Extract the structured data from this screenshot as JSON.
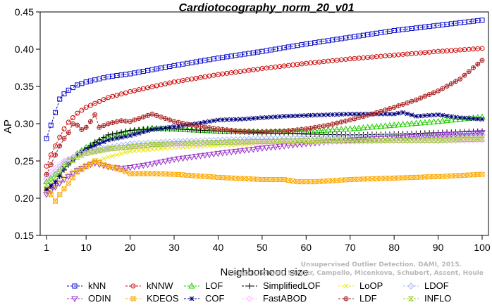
{
  "chart_data": {
    "type": "line",
    "title": "Cardiotocography_norm_20_v01",
    "xlabel": "Neighborhood size",
    "ylabel": "AP",
    "xlim": [
      1,
      100
    ],
    "ylim": [
      0.15,
      0.45
    ],
    "xticks": [
      1,
      10,
      20,
      30,
      40,
      50,
      60,
      70,
      80,
      90,
      100
    ],
    "yticks": [
      0.15,
      0.2,
      0.25,
      0.3,
      0.35,
      0.4,
      0.45
    ],
    "grid": false,
    "legend_position": "bottom",
    "watermark": [
      "Unsupervised Outlier Detection. DAMI, 2015.",
      "Campos, Zimek, Sander, Campello, Micenkova, Schubert, Assent, Houle"
    ],
    "series": [
      {
        "name": "kNN",
        "color": "#0000cc",
        "marker": "square",
        "points": [
          [
            1,
            0.28
          ],
          [
            2,
            0.298
          ],
          [
            3,
            0.315
          ],
          [
            4,
            0.333
          ],
          [
            5,
            0.34
          ],
          [
            6,
            0.345
          ],
          [
            8,
            0.352
          ],
          [
            10,
            0.356
          ],
          [
            15,
            0.363
          ],
          [
            20,
            0.367
          ],
          [
            30,
            0.378
          ],
          [
            40,
            0.388
          ],
          [
            50,
            0.397
          ],
          [
            60,
            0.407
          ],
          [
            70,
            0.416
          ],
          [
            80,
            0.425
          ],
          [
            90,
            0.432
          ],
          [
            100,
            0.439
          ]
        ]
      },
      {
        "name": "kNNW",
        "color": "#cc0000",
        "marker": "circle",
        "points": [
          [
            1,
            0.243
          ],
          [
            2,
            0.258
          ],
          [
            3,
            0.27
          ],
          [
            4,
            0.282
          ],
          [
            5,
            0.293
          ],
          [
            6,
            0.302
          ],
          [
            8,
            0.314
          ],
          [
            10,
            0.322
          ],
          [
            15,
            0.335
          ],
          [
            20,
            0.343
          ],
          [
            30,
            0.356
          ],
          [
            40,
            0.366
          ],
          [
            50,
            0.374
          ],
          [
            60,
            0.381
          ],
          [
            70,
            0.387
          ],
          [
            80,
            0.392
          ],
          [
            90,
            0.397
          ],
          [
            100,
            0.401
          ]
        ]
      },
      {
        "name": "LOF",
        "color": "#22cc00",
        "marker": "triangle-up",
        "points": [
          [
            1,
            0.222
          ],
          [
            3,
            0.232
          ],
          [
            5,
            0.245
          ],
          [
            8,
            0.26
          ],
          [
            10,
            0.268
          ],
          [
            12,
            0.275
          ],
          [
            15,
            0.282
          ],
          [
            20,
            0.29
          ],
          [
            25,
            0.294
          ],
          [
            30,
            0.293
          ],
          [
            40,
            0.29
          ],
          [
            50,
            0.289
          ],
          [
            60,
            0.29
          ],
          [
            70,
            0.293
          ],
          [
            80,
            0.298
          ],
          [
            90,
            0.303
          ],
          [
            100,
            0.309
          ]
        ]
      },
      {
        "name": "SimplifiedLOF",
        "color": "#000000",
        "marker": "plus",
        "points": [
          [
            1,
            0.21
          ],
          [
            3,
            0.22
          ],
          [
            5,
            0.238
          ],
          [
            8,
            0.258
          ],
          [
            10,
            0.265
          ],
          [
            12,
            0.275
          ],
          [
            15,
            0.285
          ],
          [
            20,
            0.291
          ],
          [
            25,
            0.293
          ],
          [
            30,
            0.293
          ],
          [
            40,
            0.29
          ],
          [
            50,
            0.288
          ],
          [
            60,
            0.286
          ],
          [
            70,
            0.285
          ],
          [
            80,
            0.286
          ],
          [
            90,
            0.288
          ],
          [
            100,
            0.29
          ]
        ]
      },
      {
        "name": "LoOP",
        "color": "#e8e800",
        "marker": "x",
        "points": [
          [
            1,
            0.208
          ],
          [
            3,
            0.215
          ],
          [
            5,
            0.228
          ],
          [
            8,
            0.24
          ],
          [
            10,
            0.245
          ],
          [
            15,
            0.255
          ],
          [
            20,
            0.263
          ],
          [
            30,
            0.268
          ],
          [
            40,
            0.271
          ],
          [
            50,
            0.273
          ],
          [
            60,
            0.275
          ],
          [
            70,
            0.277
          ],
          [
            80,
            0.279
          ],
          [
            90,
            0.282
          ],
          [
            100,
            0.283
          ]
        ]
      },
      {
        "name": "LDOF",
        "color": "#aab8ff",
        "marker": "diamond",
        "points": [
          [
            1,
            0.226
          ],
          [
            3,
            0.236
          ],
          [
            5,
            0.248
          ],
          [
            8,
            0.258
          ],
          [
            10,
            0.262
          ],
          [
            15,
            0.268
          ],
          [
            20,
            0.273
          ],
          [
            30,
            0.276
          ],
          [
            40,
            0.278
          ],
          [
            50,
            0.28
          ],
          [
            60,
            0.281
          ],
          [
            70,
            0.282
          ],
          [
            80,
            0.283
          ],
          [
            90,
            0.284
          ],
          [
            100,
            0.285
          ]
        ]
      },
      {
        "name": "ODIN",
        "color": "#9933cc",
        "marker": "triangle-down",
        "points": [
          [
            1,
            0.205
          ],
          [
            2,
            0.21
          ],
          [
            3,
            0.215
          ],
          [
            5,
            0.225
          ],
          [
            8,
            0.237
          ],
          [
            10,
            0.243
          ],
          [
            12,
            0.247
          ],
          [
            15,
            0.242
          ],
          [
            18,
            0.24
          ],
          [
            20,
            0.241
          ],
          [
            25,
            0.246
          ],
          [
            30,
            0.252
          ],
          [
            40,
            0.26
          ],
          [
            50,
            0.267
          ],
          [
            60,
            0.273
          ],
          [
            70,
            0.278
          ],
          [
            80,
            0.281
          ],
          [
            90,
            0.285
          ],
          [
            100,
            0.288
          ]
        ]
      },
      {
        "name": "KDEOS",
        "color": "#ffaa00",
        "marker": "square-x",
        "points": [
          [
            1,
            0.212
          ],
          [
            2,
            0.205
          ],
          [
            3,
            0.196
          ],
          [
            4,
            0.205
          ],
          [
            6,
            0.22
          ],
          [
            8,
            0.235
          ],
          [
            10,
            0.242
          ],
          [
            12,
            0.25
          ],
          [
            15,
            0.243
          ],
          [
            18,
            0.238
          ],
          [
            20,
            0.233
          ],
          [
            25,
            0.233
          ],
          [
            30,
            0.232
          ],
          [
            40,
            0.228
          ],
          [
            50,
            0.225
          ],
          [
            55,
            0.225
          ],
          [
            58,
            0.222
          ],
          [
            62,
            0.222
          ],
          [
            70,
            0.225
          ],
          [
            80,
            0.227
          ],
          [
            90,
            0.229
          ],
          [
            100,
            0.232
          ]
        ]
      },
      {
        "name": "COF",
        "color": "#000080",
        "marker": "asterisk",
        "points": [
          [
            1,
            0.212
          ],
          [
            3,
            0.222
          ],
          [
            5,
            0.24
          ],
          [
            8,
            0.258
          ],
          [
            10,
            0.266
          ],
          [
            15,
            0.278
          ],
          [
            20,
            0.284
          ],
          [
            25,
            0.292
          ],
          [
            30,
            0.296
          ],
          [
            35,
            0.3
          ],
          [
            40,
            0.305
          ],
          [
            45,
            0.306
          ],
          [
            50,
            0.308
          ],
          [
            55,
            0.31
          ],
          [
            60,
            0.311
          ],
          [
            65,
            0.312
          ],
          [
            70,
            0.313
          ],
          [
            75,
            0.313
          ],
          [
            80,
            0.313
          ],
          [
            82,
            0.315
          ],
          [
            85,
            0.31
          ],
          [
            90,
            0.312
          ],
          [
            95,
            0.308
          ],
          [
            100,
            0.306
          ]
        ]
      },
      {
        "name": "FastABOD",
        "color": "#ffbbff",
        "marker": "diamond",
        "points": [
          [
            1,
            0.23
          ],
          [
            3,
            0.24
          ],
          [
            5,
            0.25
          ],
          [
            8,
            0.258
          ],
          [
            10,
            0.262
          ],
          [
            15,
            0.266
          ],
          [
            20,
            0.269
          ],
          [
            30,
            0.272
          ],
          [
            40,
            0.274
          ],
          [
            50,
            0.275
          ],
          [
            60,
            0.276
          ],
          [
            70,
            0.276
          ],
          [
            80,
            0.277
          ],
          [
            90,
            0.277
          ],
          [
            100,
            0.278
          ]
        ]
      },
      {
        "name": "LDF",
        "color": "#aa2222",
        "marker": "circle-plus",
        "points": [
          [
            1,
            0.232
          ],
          [
            2,
            0.245
          ],
          [
            3,
            0.258
          ],
          [
            4,
            0.27
          ],
          [
            5,
            0.28
          ],
          [
            6,
            0.288
          ],
          [
            7,
            0.3
          ],
          [
            8,
            0.298
          ],
          [
            9,
            0.292
          ],
          [
            10,
            0.295
          ],
          [
            11,
            0.303
          ],
          [
            12,
            0.312
          ],
          [
            13,
            0.295
          ],
          [
            15,
            0.3
          ],
          [
            18,
            0.304
          ],
          [
            20,
            0.303
          ],
          [
            22,
            0.307
          ],
          [
            25,
            0.313
          ],
          [
            28,
            0.307
          ],
          [
            30,
            0.303
          ],
          [
            35,
            0.297
          ],
          [
            40,
            0.293
          ],
          [
            45,
            0.29
          ],
          [
            50,
            0.289
          ],
          [
            55,
            0.29
          ],
          [
            60,
            0.293
          ],
          [
            65,
            0.298
          ],
          [
            70,
            0.305
          ],
          [
            75,
            0.313
          ],
          [
            80,
            0.322
          ],
          [
            85,
            0.332
          ],
          [
            90,
            0.344
          ],
          [
            95,
            0.36
          ],
          [
            100,
            0.385
          ]
        ]
      },
      {
        "name": "INFLO",
        "color": "#99cc33",
        "marker": "hourglass",
        "points": [
          [
            1,
            0.218
          ],
          [
            3,
            0.228
          ],
          [
            5,
            0.242
          ],
          [
            8,
            0.255
          ],
          [
            10,
            0.26
          ],
          [
            15,
            0.266
          ],
          [
            20,
            0.269
          ],
          [
            25,
            0.272
          ],
          [
            30,
            0.273
          ],
          [
            40,
            0.275
          ],
          [
            50,
            0.276
          ],
          [
            60,
            0.277
          ],
          [
            70,
            0.277
          ],
          [
            80,
            0.278
          ],
          [
            90,
            0.278
          ],
          [
            100,
            0.279
          ]
        ]
      }
    ]
  }
}
